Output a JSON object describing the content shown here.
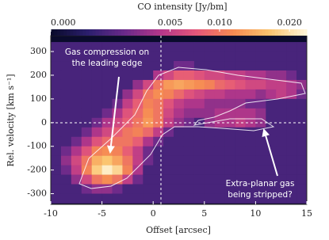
{
  "chart_data": {
    "type": "heatmap",
    "colorbar_label": "CO intensity  [Jy/bm]",
    "x_label": "Offset  [arcsec]",
    "y_label": "Rel. velocity  [km s⁻¹]",
    "xlim": [
      -10,
      15
    ],
    "ylim": [
      -345,
      367
    ],
    "xticks": [
      -10,
      -5,
      0,
      5,
      10,
      15
    ],
    "yticks": [
      -300,
      -200,
      -100,
      0,
      100,
      200,
      300
    ],
    "clim": [
      0,
      0.023
    ],
    "color_scale": "sqrt",
    "cticks": [
      {
        "value": 0,
        "label": "0.000"
      },
      0.005,
      {
        "value": 0.01,
        "label": "0.010"
      },
      {
        "value": 0.02,
        "label": "0.020"
      }
    ],
    "colormap": [
      "#0a0b2c",
      "#2c1f6e",
      "#6a2a8a",
      "#b4378a",
      "#e5577a",
      "#f68a52",
      "#fbc46e",
      "#fff4d6"
    ],
    "x": [
      -9.5,
      -8.5,
      -7.5,
      -6.5,
      -5.5,
      -4.5,
      -3.5,
      -2.5,
      -1.5,
      -0.5,
      0.5,
      1.5,
      2.5,
      3.5,
      4.5,
      5.5,
      6.5,
      7.5,
      8.5,
      9.5,
      10.5,
      11.5,
      12.5,
      13.5,
      14.5
    ],
    "y": [
      320,
      280,
      240,
      200,
      160,
      120,
      80,
      40,
      0,
      -40,
      -80,
      -120,
      -160,
      -200,
      -240,
      -280,
      -320
    ],
    "z": [
      [
        0.001,
        0.001,
        0.001,
        0.001,
        0.001,
        0.001,
        0.001,
        0.001,
        0.001,
        0.001,
        0.001,
        0.001,
        0.001,
        0.001,
        0.001,
        0.001,
        0.001,
        0.001,
        0.001,
        0.001,
        0.001,
        0.001,
        0.001,
        0.001,
        0.001
      ],
      [
        0.001,
        0.001,
        0.001,
        0.001,
        0.001,
        0.001,
        0.001,
        0.001,
        0.001,
        0.001,
        0.001,
        0.001,
        0.001,
        0.001,
        0.001,
        0.001,
        0.001,
        0.001,
        0.001,
        0.001,
        0.001,
        0.001,
        0.001,
        0.001,
        0.001
      ],
      [
        0.001,
        0.001,
        0.001,
        0.001,
        0.001,
        0.001,
        0.001,
        0.001,
        0.001,
        0.001,
        0.001,
        0.001,
        0.002,
        0.002,
        0.001,
        0.001,
        0.001,
        0.001,
        0.001,
        0.001,
        0.001,
        0.001,
        0.001,
        0.001,
        0.001
      ],
      [
        0.001,
        0.001,
        0.001,
        0.001,
        0.001,
        0.001,
        0.001,
        0.001,
        0.001,
        0.001,
        0.004,
        0.006,
        0.008,
        0.008,
        0.007,
        0.006,
        0.006,
        0.005,
        0.005,
        0.004,
        0.004,
        0.003,
        0.003,
        0.002,
        0.001
      ],
      [
        0.001,
        0.001,
        0.001,
        0.001,
        0.001,
        0.001,
        0.001,
        0.001,
        0.003,
        0.006,
        0.01,
        0.013,
        0.014,
        0.013,
        0.012,
        0.011,
        0.009,
        0.008,
        0.007,
        0.006,
        0.006,
        0.005,
        0.005,
        0.004,
        0.003
      ],
      [
        0.001,
        0.001,
        0.001,
        0.001,
        0.001,
        0.001,
        0.001,
        0.003,
        0.006,
        0.01,
        0.012,
        0.011,
        0.009,
        0.007,
        0.006,
        0.005,
        0.005,
        0.004,
        0.004,
        0.004,
        0.003,
        0.004,
        0.005,
        0.004,
        0.002
      ],
      [
        0.001,
        0.001,
        0.001,
        0.001,
        0.001,
        0.001,
        0.002,
        0.005,
        0.008,
        0.011,
        0.01,
        0.007,
        0.005,
        0.004,
        0.004,
        0.003,
        0.003,
        0.003,
        0.003,
        0.002,
        0.002,
        0.001,
        0.001,
        0.001,
        0.001
      ],
      [
        0.001,
        0.001,
        0.001,
        0.001,
        0.001,
        0.002,
        0.004,
        0.007,
        0.009,
        0.012,
        0.01,
        0.006,
        0.004,
        0.003,
        0.003,
        0.003,
        0.004,
        0.004,
        0.004,
        0.004,
        0.003,
        0.001,
        0.001,
        0.001,
        0.001
      ],
      [
        0.001,
        0.001,
        0.001,
        0.001,
        0.002,
        0.004,
        0.006,
        0.008,
        0.01,
        0.013,
        0.01,
        0.005,
        0.003,
        0.002,
        0.001,
        0.003,
        0.004,
        0.004,
        0.005,
        0.004,
        0.003,
        0.001,
        0.001,
        0.001,
        0.001
      ],
      [
        0.001,
        0.001,
        0.001,
        0.002,
        0.004,
        0.006,
        0.008,
        0.01,
        0.011,
        0.009,
        0.005,
        0.002,
        0.001,
        0.001,
        0.001,
        0.001,
        0.001,
        0.001,
        0.001,
        0.001,
        0.001,
        0.001,
        0.001,
        0.001,
        0.001
      ],
      [
        0.001,
        0.001,
        0.002,
        0.004,
        0.007,
        0.009,
        0.01,
        0.01,
        0.008,
        0.004,
        0.002,
        0.001,
        0.001,
        0.001,
        0.001,
        0.001,
        0.001,
        0.001,
        0.001,
        0.001,
        0.001,
        0.001,
        0.001,
        0.001,
        0.001
      ],
      [
        0.001,
        0.002,
        0.004,
        0.007,
        0.011,
        0.012,
        0.011,
        0.008,
        0.005,
        0.002,
        0.001,
        0.001,
        0.001,
        0.001,
        0.001,
        0.001,
        0.001,
        0.001,
        0.001,
        0.001,
        0.001,
        0.001,
        0.001,
        0.001,
        0.001
      ],
      [
        0.001,
        0.003,
        0.006,
        0.01,
        0.015,
        0.017,
        0.014,
        0.01,
        0.005,
        0.002,
        0.001,
        0.001,
        0.001,
        0.001,
        0.001,
        0.001,
        0.001,
        0.001,
        0.001,
        0.001,
        0.001,
        0.001,
        0.001,
        0.001,
        0.001
      ],
      [
        0.001,
        0.002,
        0.005,
        0.011,
        0.018,
        0.022,
        0.019,
        0.011,
        0.004,
        0.001,
        0.001,
        0.001,
        0.001,
        0.001,
        0.001,
        0.001,
        0.001,
        0.001,
        0.001,
        0.001,
        0.001,
        0.001,
        0.001,
        0.001,
        0.001
      ],
      [
        0.001,
        0.001,
        0.003,
        0.006,
        0.01,
        0.012,
        0.01,
        0.005,
        0.002,
        0.001,
        0.001,
        0.001,
        0.001,
        0.001,
        0.001,
        0.001,
        0.001,
        0.001,
        0.001,
        0.001,
        0.001,
        0.001,
        0.001,
        0.001,
        0.001
      ],
      [
        0.001,
        0.001,
        0.001,
        0.002,
        0.003,
        0.003,
        0.002,
        0.001,
        0.001,
        0.001,
        0.001,
        0.001,
        0.001,
        0.001,
        0.001,
        0.001,
        0.001,
        0.001,
        0.001,
        0.001,
        0.001,
        0.001,
        0.001,
        0.001,
        0.001
      ],
      [
        0.001,
        0.001,
        0.001,
        0.001,
        0.001,
        0.001,
        0.001,
        0.001,
        0.001,
        0.001,
        0.001,
        0.001,
        0.001,
        0.001,
        0.001,
        0.001,
        0.001,
        0.001,
        0.001,
        0.001,
        0.001,
        0.001,
        0.001,
        0.001,
        0.001
      ]
    ],
    "annotations": [
      {
        "lines": [
          "Gas compression on",
          "the leading edge"
        ]
      },
      {
        "lines": [
          "Extra-planar gas",
          "being stripped?"
        ]
      }
    ]
  }
}
